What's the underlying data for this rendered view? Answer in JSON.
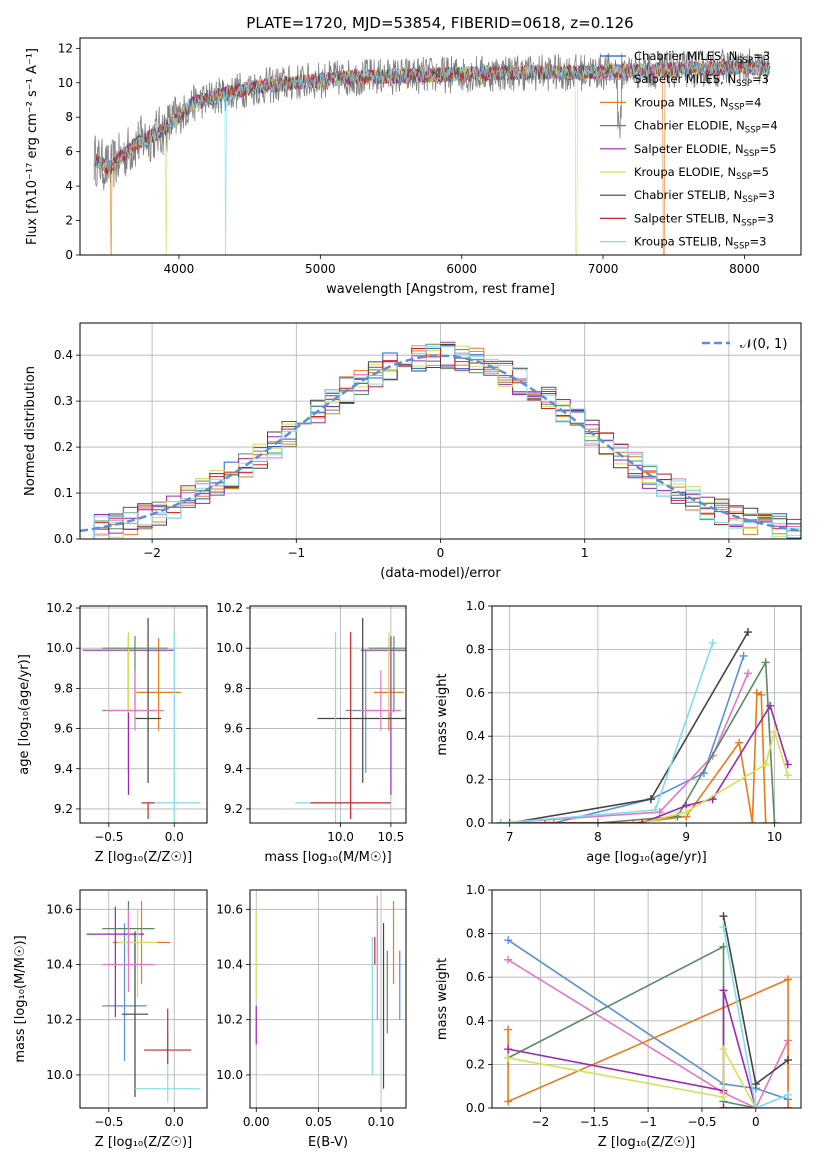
{
  "title": "PLATE=1720, MJD=53854, FIBERID=0618, z=0.126",
  "colors": {
    "grid": "#b0b0b0",
    "c_miles": "#ffffff",
    "spec_gray": "#7f7f7f"
  },
  "chart_data": [
    {
      "id": "spectrum",
      "type": "line",
      "xlabel": "wavelength [Angstrom, rest frame]",
      "ylabel": "Flux [f$_\\lambda$10$^{-17}$ erg cm$^{-2}$ s$^{-1}$ A$^{-1}$]",
      "ylabel_display": "Flux [fλ10⁻¹⁷ erg cm⁻² s⁻¹ A⁻¹]",
      "xlim": [
        3300,
        8400
      ],
      "ylim": [
        0,
        12.6
      ],
      "xticks": [
        4000,
        5000,
        6000,
        7000,
        8000
      ],
      "yticks": [
        0,
        2,
        4,
        6,
        8,
        10,
        12
      ],
      "legend_position": "top-right",
      "data_profile": {
        "x": [
          3400,
          3500,
          3700,
          3900,
          4100,
          4300,
          4500,
          4800,
          5200,
          5600,
          6000,
          6400,
          6800,
          7200,
          7600,
          8000,
          8200
        ],
        "y": [
          5.6,
          5.0,
          6.5,
          7.3,
          8.8,
          9.3,
          9.7,
          10.0,
          10.3,
          10.4,
          10.5,
          10.6,
          10.6,
          10.7,
          10.8,
          10.9,
          10.8
        ]
      },
      "legend": [
        {
          "label": "Chabrier MILES, N",
          "sub": "SSP",
          "suffix": "=3",
          "color": "#1f5fd1"
        },
        {
          "label": "Salpeter MILES, N",
          "sub": "SSP",
          "suffix": "=3",
          "color": "#e377c2"
        },
        {
          "label": "Kroupa MILES, N",
          "sub": "SSP",
          "suffix": "=4",
          "color": "#e87b1c"
        },
        {
          "label": "Chabrier ELODIE, N",
          "sub": "SSP",
          "suffix": "=4",
          "color": "#5a8a64"
        },
        {
          "label": "Salpeter ELODIE, N",
          "sub": "SSP",
          "suffix": "=5",
          "color": "#9c27b0"
        },
        {
          "label": "Kroupa ELODIE, N",
          "sub": "SSP",
          "suffix": "=5",
          "color": "#d4e157"
        },
        {
          "label": "Chabrier STELIB, N",
          "sub": "SSP",
          "suffix": "=3",
          "color": "#444444"
        },
        {
          "label": "Salpeter STELIB, N",
          "sub": "SSP",
          "suffix": "=3",
          "color": "#c62828"
        },
        {
          "label": "Kroupa STELIB, N",
          "sub": "SSP",
          "suffix": "=3",
          "color": "#80deea"
        }
      ]
    },
    {
      "id": "residual-hist",
      "type": "line",
      "xlabel": "(data-model)/error",
      "ylabel": "Normed distribution",
      "xlim": [
        -2.5,
        2.5
      ],
      "ylim": [
        0,
        0.47
      ],
      "xticks": [
        -2,
        -1,
        0,
        1,
        2
      ],
      "yticks": [
        0.0,
        0.1,
        0.2,
        0.3,
        0.4
      ],
      "legend": [
        {
          "label": "𝒩(0, 1)",
          "color": "#5b8fd9",
          "style": "dashed"
        }
      ],
      "legend_position": "top-right",
      "grid": true
    },
    {
      "id": "age-vs-Z",
      "type": "scatter",
      "xlabel": "Z [log₁₀(Z/Z☉)]",
      "ylabel": "age  [log₁₀(age/yr)]",
      "xlim": [
        -0.72,
        0.25
      ],
      "ylim": [
        9.13,
        10.21
      ],
      "xticks": [
        -0.5,
        0.0
      ],
      "yticks": [
        9.2,
        9.4,
        9.6,
        9.8,
        10.0,
        10.2
      ],
      "points": [
        {
          "x": -0.35,
          "y": 9.69,
          "xerr": [
            0.2,
            0.2
          ],
          "yerr": [
            0.31,
            0.3
          ],
          "color": "#5b8fd9"
        },
        {
          "x": -0.12,
          "y": 9.78,
          "xerr": [
            0.17,
            0.17
          ],
          "yerr": [
            0.19,
            0.27
          ],
          "color": "#e87b1c"
        },
        {
          "x": -0.35,
          "y": 9.99,
          "xerr": [
            0.35,
            0.35
          ],
          "yerr": [
            0.72,
            0.07
          ],
          "color": "#9c27b0"
        },
        {
          "x": -0.2,
          "y": 9.65,
          "xerr": [
            0.1,
            0.1
          ],
          "yerr": [
            0.32,
            0.5
          ],
          "color": "#444444"
        },
        {
          "x": -0.35,
          "y": 10.0,
          "xerr": [
            0.15,
            0.15
          ],
          "yerr": [
            0.32,
            0.08
          ],
          "color": "#d4e157"
        },
        {
          "x": -0.3,
          "y": 10.0,
          "xerr": [
            0.25,
            0.25
          ],
          "yerr": [
            0.32,
            0.06
          ],
          "color": "#5a8a64"
        },
        {
          "x": 0.0,
          "y": 9.23,
          "xerr": [
            0.2,
            0.2
          ],
          "yerr": [
            0.1,
            0.85
          ],
          "color": "#80deea"
        },
        {
          "x": -0.2,
          "y": 9.23,
          "xerr": [
            0.05,
            0.05
          ],
          "yerr": [
            0.08,
            0.0
          ],
          "color": "#c62828"
        },
        {
          "x": -0.3,
          "y": 9.69,
          "xerr": [
            0.22,
            0.22
          ],
          "yerr": [
            0.1,
            0.2
          ],
          "color": "#e377c2"
        }
      ],
      "grid": true
    },
    {
      "id": "age-vs-mass",
      "type": "scatter",
      "xlabel": "mass [log₁₀(M/M☉)]",
      "ylabel": "",
      "xlim": [
        9.1,
        10.65
      ],
      "ylim": [
        9.13,
        10.21
      ],
      "xticks": [
        10.0,
        10.5
      ],
      "yticks": [
        9.2,
        9.4,
        9.6,
        9.8,
        10.0,
        10.2
      ],
      "points": [
        {
          "x": 10.25,
          "y": 9.69,
          "xerr": [
            0.2,
            0.2
          ],
          "yerr": [
            0.31,
            0.3
          ],
          "color": "#5b8fd9"
        },
        {
          "x": 10.48,
          "y": 9.78,
          "xerr": [
            0.15,
            0.15
          ],
          "yerr": [
            0.19,
            0.27
          ],
          "color": "#e87b1c"
        },
        {
          "x": 10.5,
          "y": 9.99,
          "xerr": [
            0.3,
            0.3
          ],
          "yerr": [
            0.72,
            0.07
          ],
          "color": "#9c27b0"
        },
        {
          "x": 10.22,
          "y": 9.65,
          "xerr": [
            0.45,
            0.45
          ],
          "yerr": [
            0.32,
            0.5
          ],
          "color": "#444444"
        },
        {
          "x": 10.48,
          "y": 10.0,
          "xerr": [
            0.2,
            0.2
          ],
          "yerr": [
            0.32,
            0.08
          ],
          "color": "#d4e157"
        },
        {
          "x": 10.53,
          "y": 10.0,
          "xerr": [
            0.25,
            0.25
          ],
          "yerr": [
            0.32,
            0.06
          ],
          "color": "#5a8a64"
        },
        {
          "x": 9.95,
          "y": 9.23,
          "xerr": [
            0.4,
            0.4
          ],
          "yerr": [
            0.1,
            0.85
          ],
          "color": "#80deea"
        },
        {
          "x": 10.1,
          "y": 9.23,
          "xerr": [
            0.4,
            0.4
          ],
          "yerr": [
            0.08,
            0.85
          ],
          "color": "#c62828"
        },
        {
          "x": 10.4,
          "y": 9.69,
          "xerr": [
            0.2,
            0.2
          ],
          "yerr": [
            0.1,
            0.2
          ],
          "color": "#e377c2"
        }
      ],
      "grid": true
    },
    {
      "id": "mass-weight-vs-age",
      "type": "line",
      "xlabel": "age  [log₁₀(age/yr)]",
      "ylabel": "mass weight",
      "xlim": [
        6.8,
        10.3
      ],
      "ylim": [
        0,
        1.0
      ],
      "xticks": [
        7,
        8,
        9,
        10
      ],
      "yticks": [
        0.0,
        0.2,
        0.4,
        0.6,
        0.8,
        1.0
      ],
      "series": [
        {
          "color": "#5b8fd9",
          "x": [
            6.9,
            7.5,
            8.6,
            9.2,
            9.65
          ],
          "y": [
            0.0,
            0.0,
            0.11,
            0.23,
            0.77
          ]
        },
        {
          "color": "#e377c2",
          "x": [
            6.9,
            8.7,
            9.3,
            9.7
          ],
          "y": [
            0.0,
            0.05,
            0.31,
            0.69
          ]
        },
        {
          "color": "#e87b1c",
          "x": [
            7.5,
            8.4,
            9.0,
            9.6,
            9.75,
            9.8,
            9.85,
            9.9
          ],
          "y": [
            0.0,
            0.0,
            0.03,
            0.37,
            0.0,
            0.6,
            0.59,
            0.0
          ]
        },
        {
          "color": "#5a8a64",
          "x": [
            7.4,
            8.0,
            8.9,
            9.9,
            10.0
          ],
          "y": [
            0.0,
            0.0,
            0.03,
            0.74,
            0.0
          ]
        },
        {
          "color": "#9c27b0",
          "x": [
            8.5,
            9.0,
            9.3,
            9.95,
            10.15
          ],
          "y": [
            0.0,
            0.08,
            0.11,
            0.54,
            0.27
          ]
        },
        {
          "color": "#d4e157",
          "x": [
            8.5,
            9.0,
            9.9,
            10.0,
            10.15
          ],
          "y": [
            0.0,
            0.05,
            0.27,
            0.42,
            0.22
          ]
        },
        {
          "color": "#444444",
          "x": [
            7.0,
            8.6,
            9.7
          ],
          "y": [
            0.0,
            0.11,
            0.88
          ]
        },
        {
          "color": "#c62828",
          "x": [
            6.9,
            8.5
          ],
          "y": [
            0.0,
            0.0
          ]
        },
        {
          "color": "#80deea",
          "x": [
            6.9,
            8.65,
            9.3
          ],
          "y": [
            0.0,
            0.06,
            0.83
          ]
        }
      ],
      "grid": true
    },
    {
      "id": "mass-vs-Z",
      "type": "scatter",
      "xlabel": "Z [log₁₀(Z/Z☉)]",
      "ylabel": "mass [log₁₀(M/M☉)]",
      "xlim": [
        -0.72,
        0.25
      ],
      "ylim": [
        9.88,
        10.67
      ],
      "xticks": [
        -0.5,
        0.0
      ],
      "yticks": [
        10.0,
        10.2,
        10.4,
        10.6
      ],
      "points": [
        {
          "x": -0.38,
          "y": 10.25,
          "xerr": [
            0.17,
            0.17
          ],
          "yerr": [
            0.2,
            0.3
          ],
          "color": "#5b8fd9"
        },
        {
          "x": -0.25,
          "y": 10.48,
          "xerr": [
            0.22,
            0.22
          ],
          "yerr": [
            0.15,
            0.15
          ],
          "color": "#e87b1c"
        },
        {
          "x": -0.45,
          "y": 10.51,
          "xerr": [
            0.22,
            0.22
          ],
          "yerr": [
            0.3,
            0.1
          ],
          "color": "#9c27b0"
        },
        {
          "x": -0.3,
          "y": 10.22,
          "xerr": [
            0.1,
            0.1
          ],
          "yerr": [
            0.3,
            0.3
          ],
          "color": "#444444"
        },
        {
          "x": -0.28,
          "y": 10.48,
          "xerr": [
            0.15,
            0.15
          ],
          "yerr": [
            0.2,
            0.12
          ],
          "color": "#d4e157"
        },
        {
          "x": -0.35,
          "y": 10.53,
          "xerr": [
            0.2,
            0.2
          ],
          "yerr": [
            0.1,
            0.1
          ],
          "color": "#5a8a64"
        },
        {
          "x": -0.05,
          "y": 9.95,
          "xerr": [
            0.25,
            0.25
          ],
          "yerr": [
            0.05,
            0.2
          ],
          "color": "#80deea"
        },
        {
          "x": -0.05,
          "y": 10.09,
          "xerr": [
            0.18,
            0.18
          ],
          "yerr": [
            0.05,
            0.15
          ],
          "color": "#c62828"
        },
        {
          "x": -0.35,
          "y": 10.4,
          "xerr": [
            0.2,
            0.2
          ],
          "yerr": [
            0.1,
            0.2
          ],
          "color": "#e377c2"
        }
      ],
      "grid": true
    },
    {
      "id": "mass-vs-EBV",
      "type": "scatter",
      "xlabel": "E(B-V)",
      "ylabel": "",
      "xlim": [
        -0.005,
        0.12
      ],
      "ylim": [
        9.88,
        10.67
      ],
      "xticks": [
        0.0,
        0.05,
        0.1
      ],
      "xtick_labels": [
        "0.00",
        "0.05",
        "0.10"
      ],
      "yticks": [
        10.0,
        10.2,
        10.4,
        10.6
      ],
      "points": [
        {
          "x": 0.0,
          "y": 10.45,
          "yerr": [
            0.17,
            0.15
          ],
          "color": "#d4e157"
        },
        {
          "x": 0.0,
          "y": 10.2,
          "yerr": [
            0.09,
            0.05
          ],
          "color": "#9c27b0"
        },
        {
          "x": 0.093,
          "y": 10.3,
          "yerr": [
            0.3,
            0.2
          ],
          "color": "#80deea"
        },
        {
          "x": 0.095,
          "y": 10.45,
          "yerr": [
            0.05,
            0.05
          ],
          "color": "#c62828"
        },
        {
          "x": 0.097,
          "y": 10.35,
          "yerr": [
            0.15,
            0.3
          ],
          "color": "#e377c2"
        },
        {
          "x": 0.102,
          "y": 10.2,
          "yerr": [
            0.25,
            0.35
          ],
          "color": "#444444"
        },
        {
          "x": 0.105,
          "y": 10.3,
          "yerr": [
            0.15,
            0.15
          ],
          "color": "#5a8a64"
        },
        {
          "x": 0.11,
          "y": 10.48,
          "yerr": [
            0.15,
            0.15
          ],
          "color": "#e87b1c"
        },
        {
          "x": 0.115,
          "y": 10.3,
          "yerr": [
            0.1,
            0.15
          ],
          "color": "#5b8fd9"
        }
      ],
      "grid": true
    },
    {
      "id": "mass-weight-vs-Z",
      "type": "line",
      "xlabel": "Z [log₁₀(Z/Z☉)]",
      "ylabel": "mass weight",
      "xlim": [
        -2.45,
        0.42
      ],
      "ylim": [
        0,
        1.0
      ],
      "xticks": [
        -2.0,
        -1.5,
        -1.0,
        -0.5,
        0.0
      ],
      "yticks": [
        0.0,
        0.2,
        0.4,
        0.6,
        0.8,
        1.0
      ],
      "series": [
        {
          "color": "#5b8fd9",
          "x": [
            -2.3,
            -0.3,
            0.0,
            0.3
          ],
          "y": [
            0.77,
            0.11,
            0.09,
            0.04
          ]
        },
        {
          "color": "#e377c2",
          "x": [
            -2.3,
            -0.3,
            0.0,
            0.3,
            0.3
          ],
          "y": [
            0.68,
            0.07,
            0.0,
            0.31,
            0.0
          ]
        },
        {
          "color": "#e87b1c",
          "x": [
            -2.3,
            -2.3,
            0.3,
            0.3,
            -0.3,
            0.0
          ],
          "y": [
            0.36,
            0.03,
            0.59,
            0.0,
            0.0,
            0.0
          ]
        },
        {
          "color": "#5a8a64",
          "x": [
            -2.3,
            -0.3,
            -0.3,
            0.0
          ],
          "y": [
            0.23,
            0.74,
            0.03,
            0.0
          ]
        },
        {
          "color": "#9c27b0",
          "x": [
            -2.3,
            -0.3,
            -0.3,
            0.0
          ],
          "y": [
            0.27,
            0.08,
            0.54,
            0.0
          ]
        },
        {
          "color": "#d4e157",
          "x": [
            -2.3,
            -0.3,
            -0.3,
            0.0
          ],
          "y": [
            0.23,
            0.05,
            0.27,
            0.0
          ]
        },
        {
          "color": "#444444",
          "x": [
            -0.3,
            0.0,
            0.3
          ],
          "y": [
            0.88,
            0.11,
            0.22
          ]
        },
        {
          "color": "#c62828",
          "x": [
            -0.3,
            0.0
          ],
          "y": [
            0.0,
            0.0
          ]
        },
        {
          "color": "#80deea",
          "x": [
            -0.3,
            0.0,
            0.3
          ],
          "y": [
            0.83,
            0.0,
            0.06
          ]
        }
      ],
      "grid": true
    }
  ]
}
